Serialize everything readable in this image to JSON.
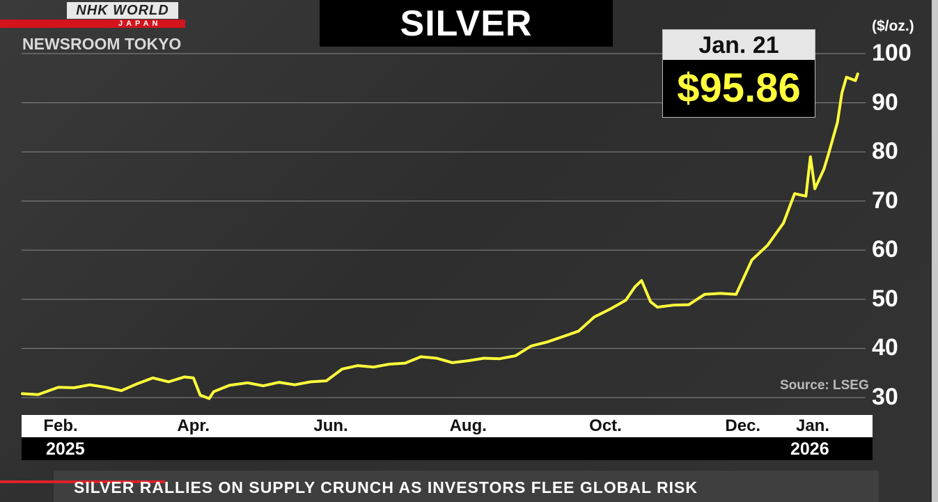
{
  "branding": {
    "logo_main": "NHK WORLD",
    "logo_sub": "JAPAN",
    "program": "NEWSROOM TOKYO"
  },
  "headline": "SILVER",
  "callout": {
    "date": "Jan. 21",
    "price": "$95.86"
  },
  "source": "Source: LSEG",
  "ticker": "SILVER RALLIES ON SUPPLY CRUNCH AS INVESTORS FLEE GLOBAL RISK",
  "colors": {
    "line": "#ffff3c",
    "background": "#333333",
    "accent": "#d3141c"
  },
  "chart_data": {
    "type": "line",
    "title": "SILVER",
    "ylabel": "($/oz.)",
    "ylim": [
      30,
      100
    ],
    "yticks": [
      "30",
      "40",
      "50",
      "60",
      "70",
      "80",
      "90",
      "100"
    ],
    "xlabels": [
      "Feb.",
      "Apr.",
      "Jun.",
      "Aug.",
      "Oct.",
      "Dec.",
      "Jan."
    ],
    "years": [
      "2025",
      "2026"
    ],
    "grid": true,
    "series": [
      {
        "x": [
          "2025-01-15",
          "2025-01-22",
          "2025-01-31",
          "2025-02-07",
          "2025-02-14",
          "2025-02-21",
          "2025-02-28",
          "2025-03-07",
          "2025-03-14",
          "2025-03-21",
          "2025-03-28",
          "2025-04-01",
          "2025-04-04",
          "2025-04-08",
          "2025-04-10",
          "2025-04-17",
          "2025-04-25",
          "2025-05-02",
          "2025-05-09",
          "2025-05-16",
          "2025-05-23",
          "2025-05-30",
          "2025-06-06",
          "2025-06-13",
          "2025-06-20",
          "2025-06-27",
          "2025-07-04",
          "2025-07-11",
          "2025-07-18",
          "2025-07-25",
          "2025-08-01",
          "2025-08-08",
          "2025-08-15",
          "2025-08-22",
          "2025-08-29",
          "2025-09-05",
          "2025-09-12",
          "2025-09-19",
          "2025-09-26",
          "2025-10-03",
          "2025-10-10",
          "2025-10-14",
          "2025-10-17",
          "2025-10-21",
          "2025-10-24",
          "2025-10-31",
          "2025-11-07",
          "2025-11-14",
          "2025-11-21",
          "2025-11-28",
          "2025-12-05",
          "2025-12-12",
          "2025-12-19",
          "2025-12-24",
          "2025-12-29",
          "2025-12-31",
          "2026-01-02",
          "2026-01-06",
          "2026-01-08",
          "2026-01-12",
          "2026-01-14",
          "2026-01-16",
          "2026-01-20",
          "2026-01-21"
        ],
        "values": [
          30.8,
          30.6,
          32.1,
          32.0,
          32.6,
          32.1,
          31.4,
          32.8,
          34.0,
          33.2,
          34.2,
          34.0,
          30.5,
          29.8,
          31.2,
          32.5,
          33.0,
          32.4,
          33.1,
          32.6,
          33.2,
          33.4,
          35.8,
          36.5,
          36.2,
          36.8,
          37.0,
          38.3,
          38.0,
          37.1,
          37.5,
          38.0,
          37.9,
          38.5,
          40.5,
          41.3,
          42.4,
          43.5,
          46.4,
          48.0,
          49.8,
          52.5,
          53.8,
          49.5,
          48.4,
          48.8,
          48.9,
          51.0,
          51.2,
          51.0,
          58.0,
          61.0,
          65.5,
          71.5,
          71.0,
          79.0,
          72.5,
          76.5,
          79.5,
          86.0,
          92.0,
          95.2,
          94.5,
          95.86
        ]
      }
    ]
  }
}
